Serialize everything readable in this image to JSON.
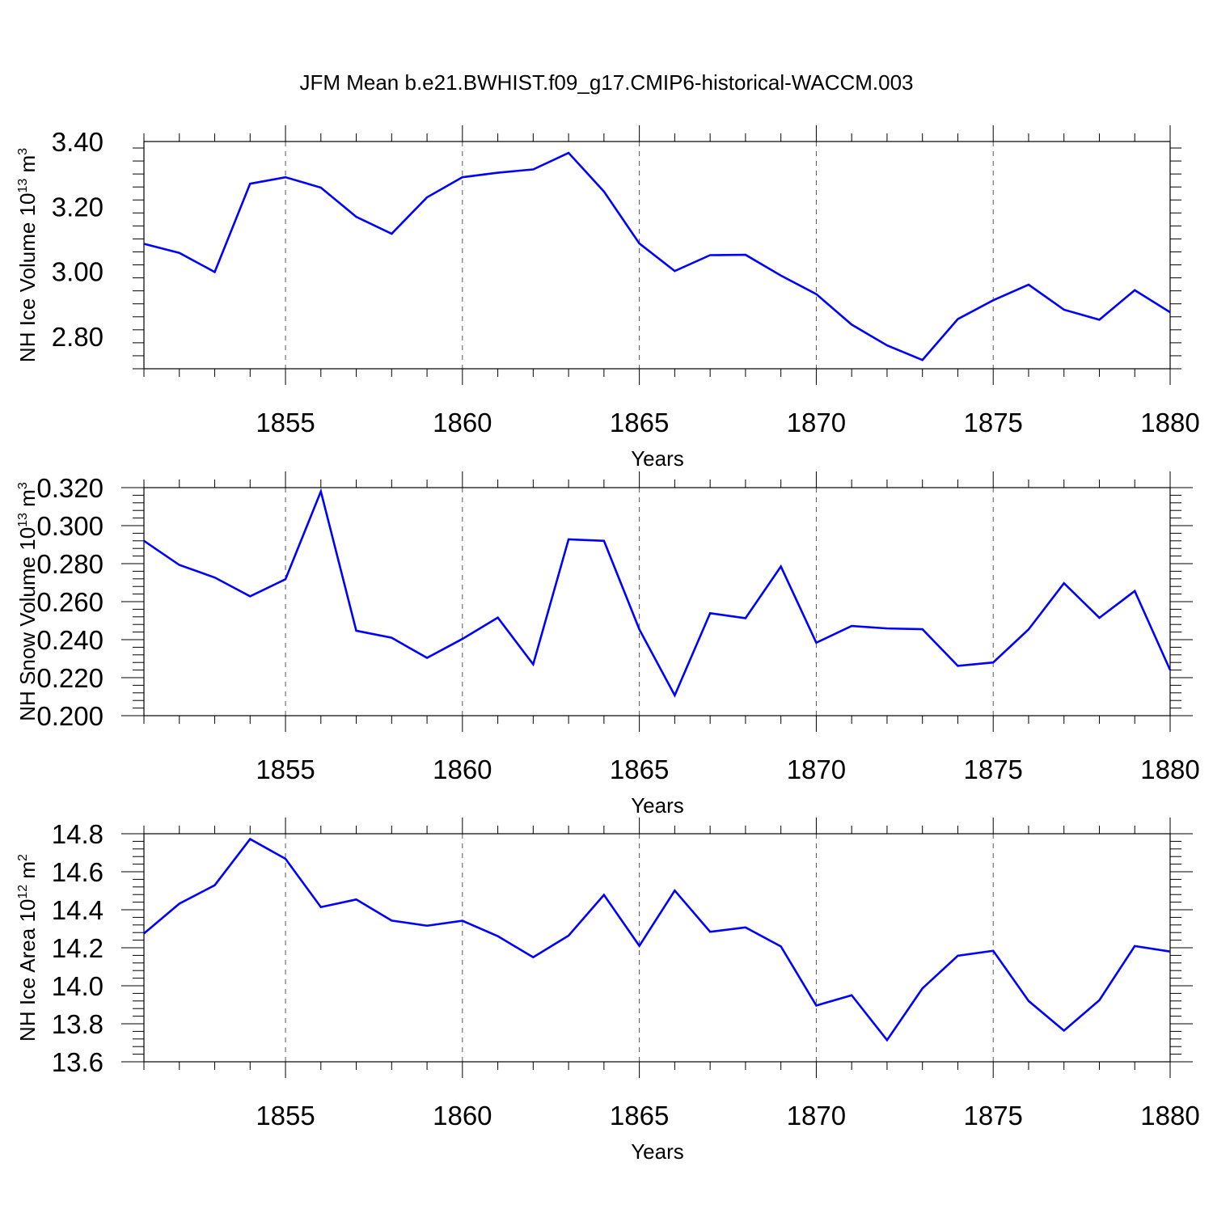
{
  "figure_title": "JFM Mean b.e21.BWHIST.f09_g17.CMIP6-historical-WACCM.003",
  "line_color": "#0000ff",
  "chart_data": [
    {
      "type": "line",
      "ylabel": {
        "text": "NH Ice Volume 10",
        "exp": "13",
        "unit": " m",
        "unit_exp": "3"
      },
      "xlabel": "Years",
      "xlim": [
        1851,
        1880
      ],
      "ylim": [
        2.7,
        3.4
      ],
      "x_ticks": [
        "1855",
        "1860",
        "1865",
        "1870",
        "1875",
        "1880"
      ],
      "y_ticks": [
        "2.80",
        "3.00",
        "3.20",
        "3.40"
      ],
      "grid": "vertical dashed at major x ticks",
      "x": [
        1851,
        1852,
        1853,
        1854,
        1855,
        1856,
        1857,
        1858,
        1859,
        1860,
        1861,
        1862,
        1863,
        1864,
        1865,
        1866,
        1867,
        1868,
        1869,
        1870,
        1871,
        1872,
        1873,
        1874,
        1875,
        1876,
        1877,
        1878,
        1879,
        1880
      ],
      "series": [
        {
          "values": [
            3.085,
            3.057,
            2.998,
            3.27,
            3.29,
            3.258,
            3.168,
            3.116,
            3.228,
            3.29,
            3.304,
            3.314,
            3.365,
            3.246,
            3.086,
            3.001,
            3.05,
            3.051,
            2.987,
            2.93,
            2.836,
            2.772,
            2.727,
            2.853,
            2.911,
            2.959,
            2.882,
            2.851,
            2.942,
            2.874
          ]
        }
      ]
    },
    {
      "type": "line",
      "ylabel": {
        "text": "NH Snow Volume 10",
        "exp": "13",
        "unit": " m",
        "unit_exp": "3"
      },
      "xlabel": "Years",
      "xlim": [
        1851,
        1880
      ],
      "ylim": [
        0.2,
        0.32
      ],
      "x_ticks": [
        "1855",
        "1860",
        "1865",
        "1870",
        "1875",
        "1880"
      ],
      "y_ticks": [
        "0.200",
        "0.220",
        "0.240",
        "0.260",
        "0.280",
        "0.300",
        "0.320"
      ],
      "grid": "vertical dashed at major x ticks",
      "x": [
        1851,
        1852,
        1853,
        1854,
        1855,
        1856,
        1857,
        1858,
        1859,
        1860,
        1861,
        1862,
        1863,
        1864,
        1865,
        1866,
        1867,
        1868,
        1869,
        1870,
        1871,
        1872,
        1873,
        1874,
        1875,
        1876,
        1877,
        1878,
        1879,
        1880
      ],
      "series": [
        {
          "values": [
            0.292,
            0.2793,
            0.2727,
            0.2628,
            0.2718,
            0.318,
            0.2447,
            0.241,
            0.2304,
            0.2404,
            0.2516,
            0.227,
            0.2928,
            0.292,
            0.2454,
            0.2107,
            0.2539,
            0.2513,
            0.2785,
            0.2384,
            0.2472,
            0.2459,
            0.2455,
            0.2262,
            0.228,
            0.2454,
            0.2697,
            0.2515,
            0.2656,
            0.224
          ]
        }
      ]
    },
    {
      "type": "line",
      "ylabel": {
        "text": "NH Ice Area 10",
        "exp": "12",
        "unit": " m",
        "unit_exp": "2"
      },
      "xlabel": "Years",
      "xlim": [
        1851,
        1880
      ],
      "ylim": [
        13.6,
        14.8
      ],
      "x_ticks": [
        "1855",
        "1860",
        "1865",
        "1870",
        "1875",
        "1880"
      ],
      "y_ticks": [
        "13.6",
        "13.8",
        "14.0",
        "14.2",
        "14.4",
        "14.6",
        "14.8"
      ],
      "grid": "vertical dashed at major x ticks",
      "x": [
        1851,
        1852,
        1853,
        1854,
        1855,
        1856,
        1857,
        1858,
        1859,
        1860,
        1861,
        1862,
        1863,
        1864,
        1865,
        1866,
        1867,
        1868,
        1869,
        1870,
        1871,
        1872,
        1873,
        1874,
        1875,
        1876,
        1877,
        1878,
        1879,
        1880
      ],
      "series": [
        {
          "values": [
            14.275,
            14.432,
            14.529,
            14.772,
            14.668,
            14.414,
            14.454,
            14.343,
            14.316,
            14.342,
            14.261,
            14.15,
            14.264,
            14.478,
            14.21,
            14.501,
            14.284,
            14.307,
            14.207,
            13.896,
            13.95,
            13.714,
            13.986,
            14.158,
            14.184,
            13.92,
            13.764,
            13.924,
            14.209,
            14.18
          ]
        }
      ]
    }
  ]
}
